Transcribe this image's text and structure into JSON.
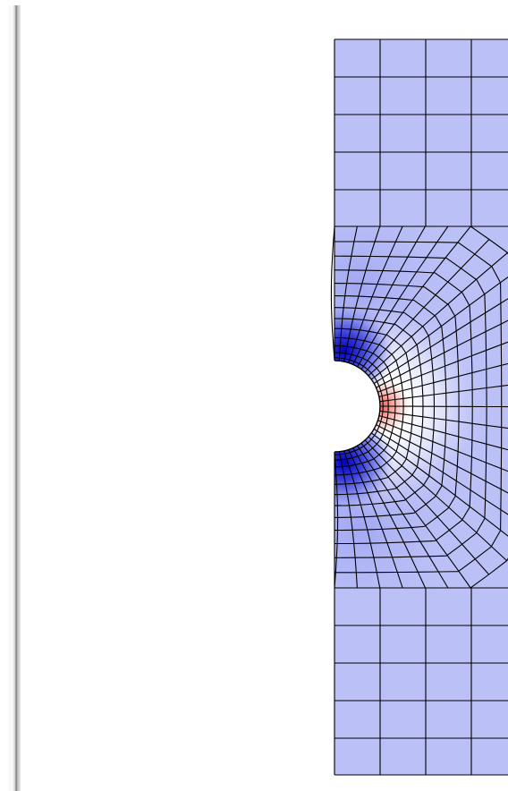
{
  "viewport": {
    "background": "#ffffff"
  },
  "mesh": {
    "element_color": "#bbc0f7",
    "edge_color": "#000000",
    "stress_low_color": "#0000cc",
    "stress_neutral_color": "#ffffff",
    "stress_high_color": "#e8423f",
    "hole_shape": "semicircle",
    "refinement": "radial-around-hole"
  }
}
